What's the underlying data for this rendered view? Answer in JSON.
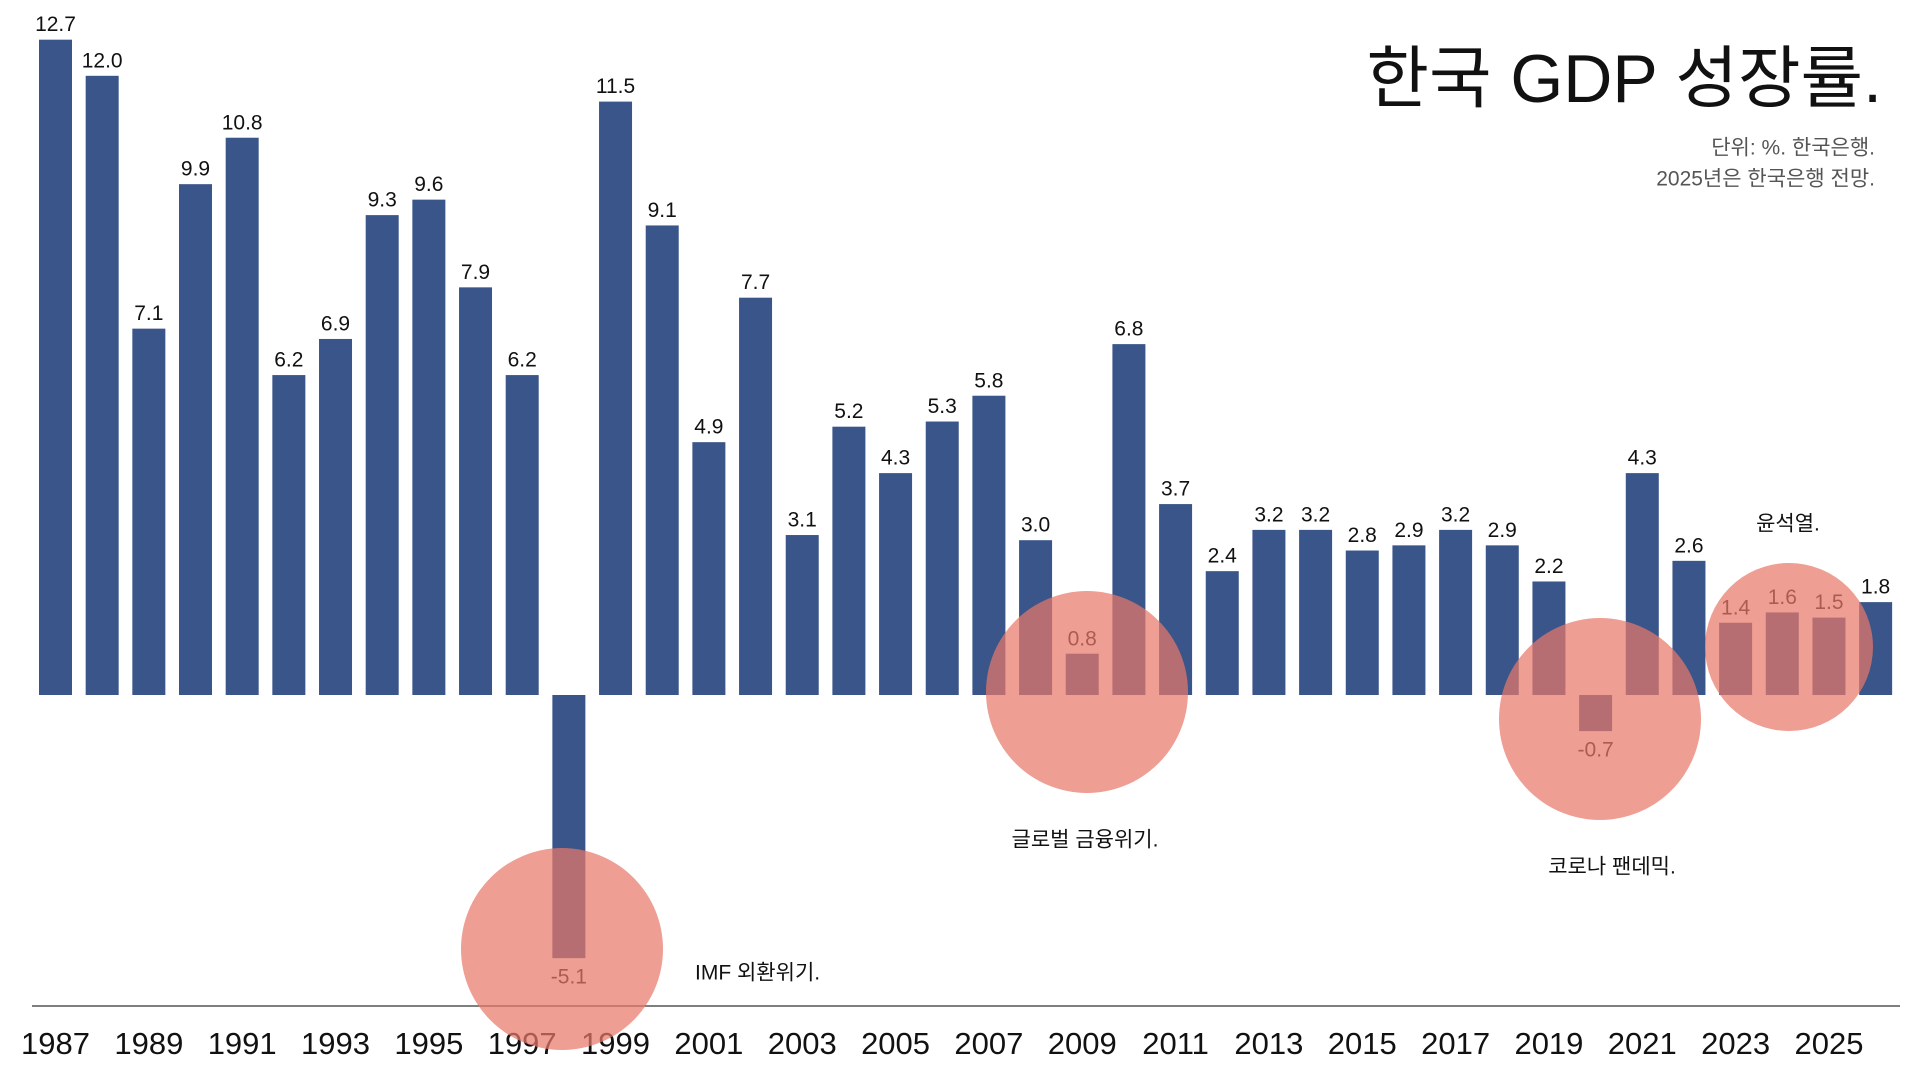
{
  "chart_data": {
    "type": "bar",
    "title": "한국 GDP 성장률.",
    "subtitle": [
      "단위: %. 한국은행.",
      "2025년은 한국은행 전망."
    ],
    "categories": [
      "1987",
      null,
      "1989",
      null,
      "1991",
      null,
      "1993",
      null,
      "1995",
      null,
      "1997",
      null,
      "1999",
      null,
      "2001",
      null,
      "2003",
      null,
      "2005",
      null,
      "2007",
      null,
      "2009",
      null,
      "2011",
      null,
      "2013",
      null,
      "2015",
      null,
      "2017",
      null,
      "2019",
      null,
      "2021",
      null,
      "2023",
      null,
      "2025",
      null
    ],
    "values": [
      12.7,
      12.0,
      7.1,
      9.9,
      10.8,
      6.2,
      6.9,
      9.3,
      9.6,
      7.9,
      6.2,
      -5.1,
      11.5,
      9.1,
      4.9,
      7.7,
      3.1,
      5.2,
      4.3,
      5.3,
      5.8,
      3.0,
      0.8,
      6.8,
      3.7,
      2.4,
      3.2,
      3.2,
      2.8,
      2.9,
      3.2,
      2.9,
      2.2,
      -0.7,
      4.3,
      2.6,
      1.4,
      1.6,
      1.5,
      1.8
    ],
    "value_labels": [
      "12.7",
      "12.0",
      "7.1",
      "9.9",
      "10.8",
      "6.2",
      "6.9",
      "9.3",
      "9.6",
      "7.9",
      "6.2",
      "-5.1",
      "11.5",
      "9.1",
      "4.9",
      "7.7",
      "3.1",
      "5.2",
      "4.3",
      "5.3",
      "5.8",
      "3.0",
      "0.8",
      "6.8",
      "3.7",
      "2.4",
      "3.2",
      "3.2",
      "2.8",
      "2.9",
      "3.2",
      "2.9",
      "2.2",
      "-0.7",
      "4.3",
      "2.6",
      "1.4",
      "1.6",
      "1.5",
      "1.8"
    ],
    "color": "#3a5589",
    "highlight_color": "#e8786a",
    "annotations": [
      "IMF 외환위기.",
      "글로벌 금융위기.",
      "코로나 팬데믹.",
      "윤석열."
    ]
  }
}
